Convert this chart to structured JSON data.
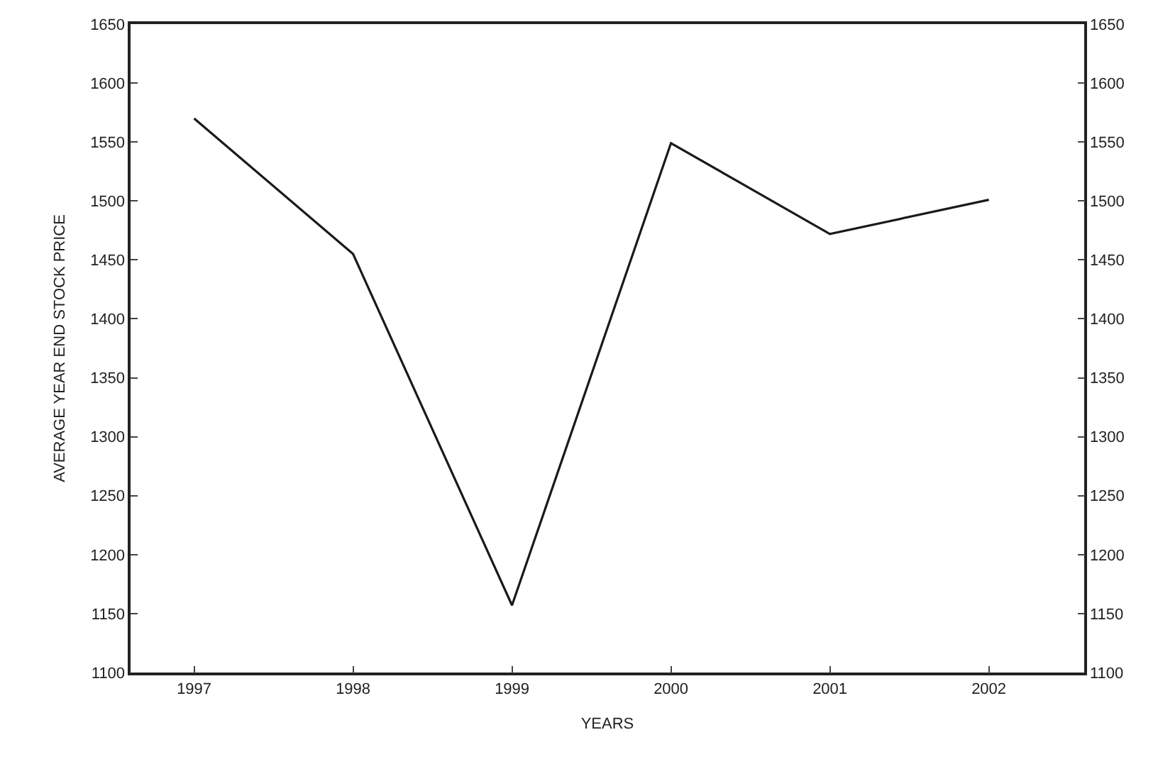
{
  "chart_data": {
    "type": "line",
    "xlabel": "YEARS",
    "ylabel": "AVERAGE YEAR END STOCK PRICE",
    "x": [
      1997,
      1998,
      1999,
      2000,
      2001,
      2002
    ],
    "series": [
      {
        "color": "#1a1a1a",
        "values": [
          1570,
          1455,
          1157,
          1549,
          1472,
          1501
        ]
      }
    ],
    "xlim": [
      1996.6,
      2002.6
    ],
    "xticks": [
      1997,
      1998,
      1999,
      2000,
      2001,
      2002
    ],
    "ylim": [
      1100,
      1650
    ],
    "yticks": [
      1100,
      1150,
      1200,
      1250,
      1300,
      1350,
      1400,
      1450,
      1500,
      1550,
      1600,
      1650
    ],
    "y2lim": [
      1100,
      1650
    ],
    "y2ticks": [
      1100,
      1150,
      1200,
      1250,
      1300,
      1350,
      1400,
      1450,
      1500,
      1550,
      1600,
      1650
    ],
    "marker": "none",
    "line_style": "solid"
  }
}
